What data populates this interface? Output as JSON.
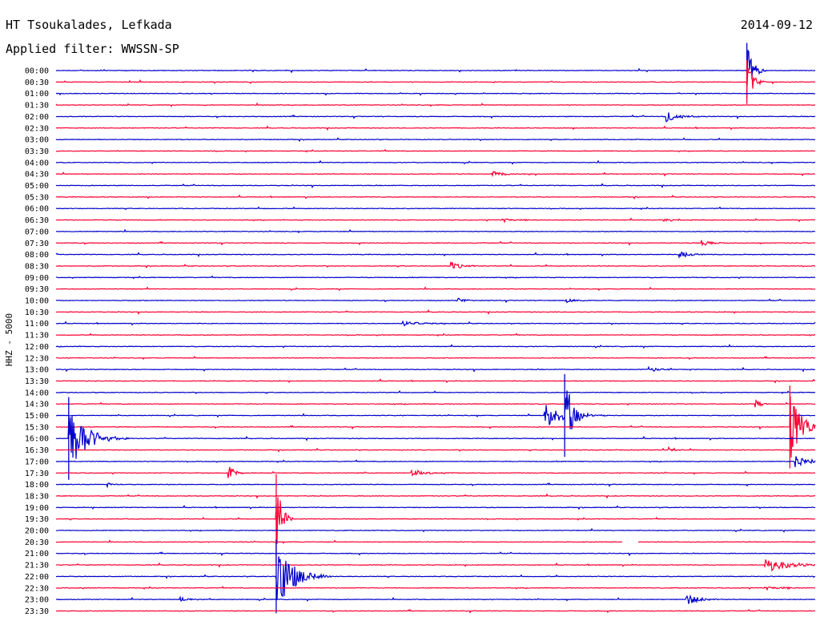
{
  "header": {
    "station": "HT Tsoukalades, Lefkada",
    "date": "2014-09-12",
    "filter": "Applied filter: WWSSN-SP"
  },
  "chart_data": {
    "type": "line",
    "title": "HT Tsoukalades, Lefkada",
    "subtitle": "Applied filter: WWSSN-SP",
    "ylabel": "HHZ - 5000",
    "row_labels": [
      "00:00",
      "00:30",
      "01:00",
      "01:30",
      "02:00",
      "02:30",
      "03:00",
      "03:30",
      "04:00",
      "04:30",
      "05:00",
      "05:30",
      "06:00",
      "06:30",
      "07:00",
      "07:30",
      "08:00",
      "08:30",
      "09:00",
      "09:30",
      "10:00",
      "10:30",
      "11:00",
      "11:30",
      "12:00",
      "12:30",
      "13:00",
      "13:30",
      "14:00",
      "14:30",
      "15:00",
      "15:30",
      "16:00",
      "16:30",
      "17:00",
      "17:30",
      "18:00",
      "18:30",
      "19:00",
      "19:30",
      "20:00",
      "20:30",
      "21:00",
      "21:30",
      "22:00",
      "22:30",
      "23:00",
      "23:30"
    ],
    "row_minutes": 30,
    "trace_colors": [
      "#0000cc",
      "#ff0033"
    ],
    "events": [
      {
        "row": 0,
        "min": 27.3,
        "amp": 2.4,
        "dur": 0.5
      },
      {
        "row": 1,
        "min": 27.3,
        "amp": 1.9,
        "dur": 0.5
      },
      {
        "row": 4,
        "min": 24.1,
        "amp": 0.5,
        "dur": 1.2
      },
      {
        "row": 9,
        "min": 17.2,
        "amp": 0.25,
        "dur": 1.5
      },
      {
        "row": 13,
        "min": 17.6,
        "amp": 0.2,
        "dur": 1.2
      },
      {
        "row": 13,
        "min": 24.0,
        "amp": 0.2,
        "dur": 1.2
      },
      {
        "row": 15,
        "min": 25.5,
        "amp": 0.3,
        "dur": 1.0
      },
      {
        "row": 16,
        "min": 24.6,
        "amp": 0.3,
        "dur": 1.2
      },
      {
        "row": 17,
        "min": 15.6,
        "amp": 0.35,
        "dur": 1.0
      },
      {
        "row": 20,
        "min": 15.8,
        "amp": 0.25,
        "dur": 0.8
      },
      {
        "row": 20,
        "min": 20.1,
        "amp": 0.25,
        "dur": 0.8
      },
      {
        "row": 22,
        "min": 13.7,
        "amp": 0.25,
        "dur": 1.5
      },
      {
        "row": 26,
        "min": 23.4,
        "amp": 0.25,
        "dur": 1.0
      },
      {
        "row": 29,
        "min": 27.6,
        "amp": 0.4,
        "dur": 0.5
      },
      {
        "row": 30,
        "min": 19.3,
        "amp": 1.2,
        "dur": 1.8
      },
      {
        "row": 30,
        "min": 20.1,
        "amp": 3.6,
        "dur": 0.6
      },
      {
        "row": 31,
        "min": 29.0,
        "amp": 3.6,
        "dur": 1.0
      },
      {
        "row": 32,
        "min": 0.5,
        "amp": 3.6,
        "dur": 1.5
      },
      {
        "row": 33,
        "min": 24.2,
        "amp": 0.35,
        "dur": 0.4
      },
      {
        "row": 34,
        "min": 29.2,
        "amp": 0.5,
        "dur": 1.5
      },
      {
        "row": 35,
        "min": 6.8,
        "amp": 0.8,
        "dur": 0.4
      },
      {
        "row": 35,
        "min": 14.0,
        "amp": 0.25,
        "dur": 1.5
      },
      {
        "row": 36,
        "min": 2.0,
        "amp": 0.25,
        "dur": 0.4
      },
      {
        "row": 39,
        "min": 8.7,
        "amp": 3.9,
        "dur": 0.4
      },
      {
        "row": 43,
        "min": 28.0,
        "amp": 0.7,
        "dur": 2.3
      },
      {
        "row": 44,
        "min": 8.7,
        "amp": 3.2,
        "dur": 1.5
      },
      {
        "row": 45,
        "min": 28.0,
        "amp": 0.15,
        "dur": 2.3
      },
      {
        "row": 46,
        "min": 4.9,
        "amp": 0.25,
        "dur": 0.8
      },
      {
        "row": 46,
        "min": 24.9,
        "amp": 0.6,
        "dur": 1.0
      }
    ],
    "gaps": [
      {
        "row": 41,
        "min": 22.4,
        "dur": 0.6
      }
    ]
  }
}
